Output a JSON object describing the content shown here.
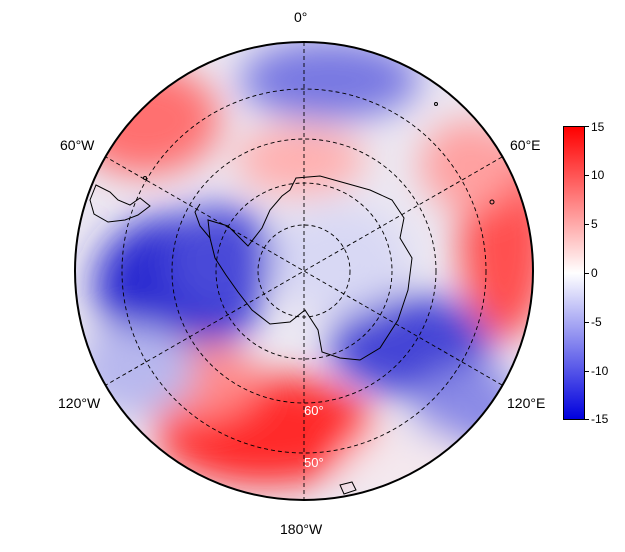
{
  "map": {
    "projection": "south-polar-stereographic",
    "lon_labels": [
      "0°",
      "60°E",
      "120°E",
      "180°W",
      "120°W",
      "60°W"
    ],
    "lat_labels": [
      "60°",
      "50°"
    ],
    "graticule": "dashed",
    "coastlines": true
  },
  "colorbar": {
    "ticks": [
      "15",
      "10",
      "5",
      "0",
      "-5",
      "-10",
      "-15"
    ],
    "range": [
      -15,
      15
    ],
    "colors": {
      "min": "#0000dd",
      "mid": "#ffffff",
      "max": "#ff0000"
    }
  },
  "field_anomalies": [
    {
      "region": "120W-150W high latitudes",
      "value": -13
    },
    {
      "region": "180 mid latitudes",
      "value": 14
    },
    {
      "region": "60E-90E mid latitudes",
      "value": 9
    },
    {
      "region": "150E-120E mid latitudes",
      "value": -9
    },
    {
      "region": "0 mid latitudes",
      "value": -6
    },
    {
      "region": "0 sub-polar",
      "value": 5
    },
    {
      "region": "60W-90W outer ring",
      "value": 8
    },
    {
      "region": "150W outer ring",
      "value": -4
    }
  ]
}
